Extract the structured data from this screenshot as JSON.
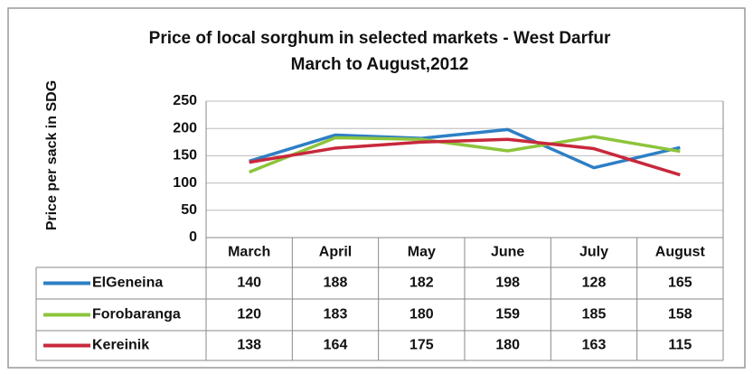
{
  "chart_data": {
    "type": "line",
    "title": "Price of local sorghum in selected markets - West Darfur",
    "subtitle": "March to August,2012",
    "y_label": "Price per sack in SDG",
    "categories": [
      "March",
      "April",
      "May",
      "June",
      "July",
      "August"
    ],
    "series": [
      {
        "name": "ElGeneina",
        "color": "#2e7fc5",
        "values": [
          140,
          188,
          182,
          198,
          128,
          165
        ]
      },
      {
        "name": "Forobaranga",
        "color": "#8dc43c",
        "values": [
          120,
          183,
          180,
          159,
          185,
          158
        ]
      },
      {
        "name": "Kereinik",
        "color": "#c8283c",
        "values": [
          138,
          164,
          175,
          180,
          163,
          115
        ]
      }
    ],
    "ylim": [
      0,
      250
    ],
    "yticks": [
      0,
      50,
      100,
      150,
      200,
      250
    ],
    "grid": true
  }
}
